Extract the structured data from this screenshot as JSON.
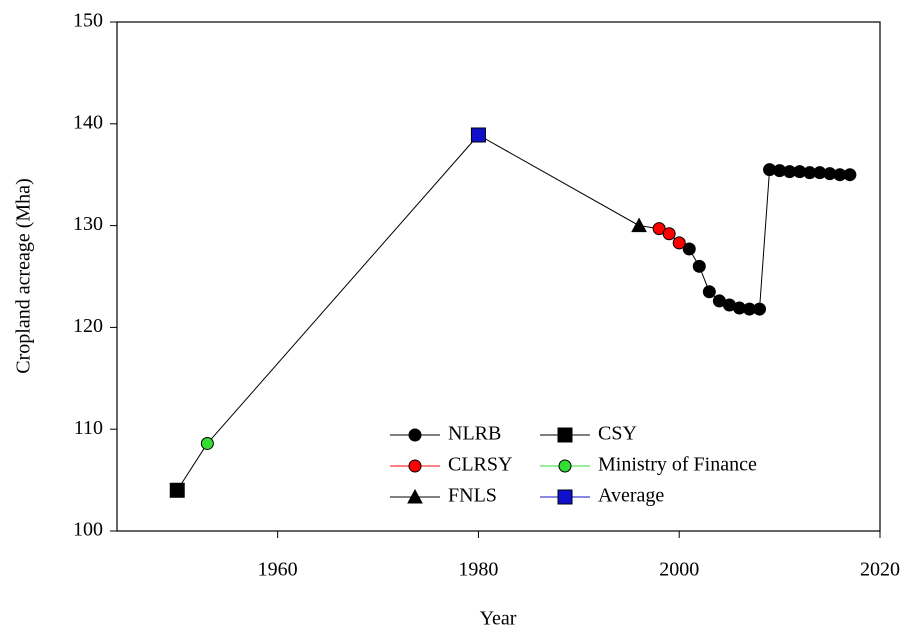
{
  "chart_data": {
    "type": "line",
    "xlabel": "Year",
    "ylabel": "Cropland acreage (Mha)",
    "xlim": [
      1944,
      2020
    ],
    "xticks": [
      1960,
      1980,
      2000,
      2020
    ],
    "ylim": [
      100,
      150
    ],
    "yticks": [
      100,
      110,
      120,
      130,
      140,
      150
    ],
    "legend": "lower right",
    "series": [
      {
        "name": "NLRB",
        "color": "#000000",
        "marker": "circle",
        "x": [
          2001,
          2002,
          2003,
          2004,
          2005,
          2006,
          2007,
          2008,
          2009,
          2010,
          2011,
          2012,
          2013,
          2014,
          2015,
          2016,
          2017
        ],
        "values": [
          127.7,
          126.0,
          123.5,
          122.6,
          122.2,
          121.9,
          121.8,
          121.8,
          135.5,
          135.4,
          135.3,
          135.3,
          135.2,
          135.2,
          135.1,
          135.0,
          135.0
        ]
      },
      {
        "name": "CLRSY",
        "color": "#ff0000",
        "marker": "circle",
        "x": [
          1998,
          1999,
          2000
        ],
        "values": [
          129.7,
          129.2,
          128.3
        ]
      },
      {
        "name": "FNLS",
        "color": "#000000",
        "marker": "triangle",
        "x": [
          1996
        ],
        "values": [
          130.0
        ]
      },
      {
        "name": "CSY",
        "color": "#000000",
        "marker": "square",
        "x": [
          1950
        ],
        "values": [
          104.0
        ]
      },
      {
        "name": "Ministry of Finance",
        "color": "#33dd33",
        "marker": "circle",
        "x": [
          1953
        ],
        "values": [
          108.6
        ]
      },
      {
        "name": "Average",
        "color": "#1010cc",
        "marker": "square",
        "x": [
          1980
        ],
        "values": [
          138.9
        ]
      }
    ]
  }
}
